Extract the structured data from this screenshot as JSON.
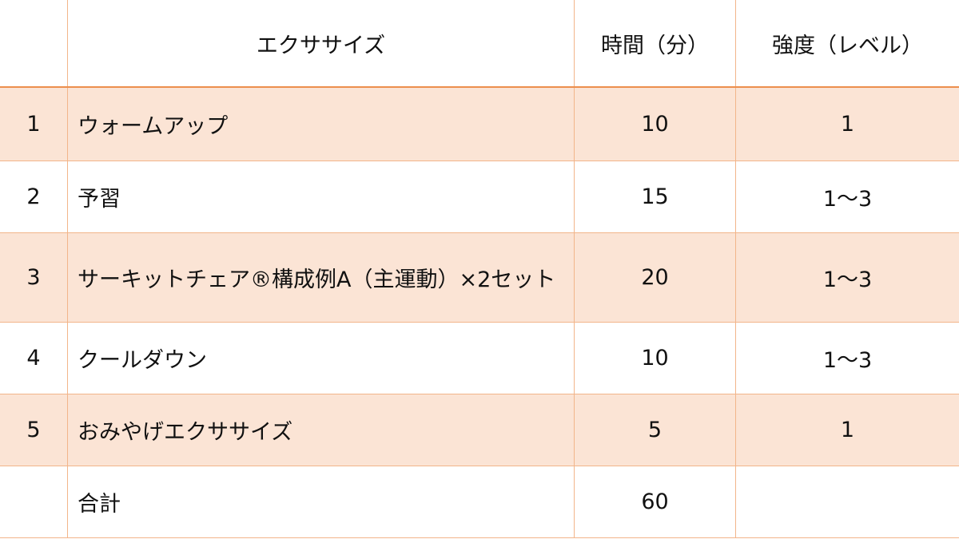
{
  "table": {
    "headers": [
      "",
      "エクササイズ",
      "時間（分）",
      "強度（レベル）"
    ],
    "rows": [
      [
        "1",
        "ウォームアップ",
        "10",
        "1"
      ],
      [
        "2",
        "予習",
        "15",
        "1〜3"
      ],
      [
        "3",
        "サーキットチェア®構成例A（主運動）×2セット",
        "20",
        "1〜3"
      ],
      [
        "4",
        "クールダウン",
        "10",
        "1〜3"
      ],
      [
        "5",
        "おみやげエクササイズ",
        "5",
        "1"
      ],
      [
        "",
        "合計",
        "60",
        ""
      ]
    ]
  },
  "colors": {
    "row_fill": "#fbe4d5",
    "border": "#f2b58a",
    "header_rule": "#ec8f4d"
  }
}
